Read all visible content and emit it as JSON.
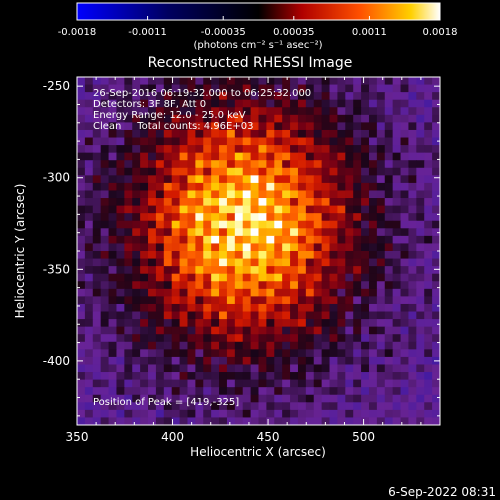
{
  "chart_data": {
    "type": "heatmap",
    "title": "Reconstructed RHESSI Image",
    "xlabel": "Heliocentric X (arcsec)",
    "ylabel": "Heliocentric Y (arcsec)",
    "xlim": [
      350,
      540
    ],
    "ylim": [
      -435,
      -245
    ],
    "x_ticks": [
      350,
      400,
      450,
      500
    ],
    "x_tick_labels": [
      "350",
      "400",
      "450",
      "500"
    ],
    "y_ticks": [
      -250,
      -300,
      -350,
      -400
    ],
    "y_tick_labels": [
      "-250",
      "-300",
      "-350",
      "-400"
    ],
    "colorbar": {
      "min": -0.0018,
      "max": 0.0018,
      "ticks": [
        -0.0018,
        -0.0011,
        -0.00035,
        0.00035,
        0.0011,
        0.0018
      ],
      "tick_labels": [
        "-0.0018",
        "-0.0011",
        "-0.00035",
        "0.00035",
        "0.0011",
        "0.0018"
      ],
      "unit_label": "(photons cm⁻² s⁻¹ asec⁻²)",
      "colors": [
        "#0000ff",
        "#000000",
        "#ff0000",
        "#ffff00",
        "#ffffff"
      ]
    },
    "annotations": [
      "26-Sep-2016 06:19:32.000 to 06:25:32.000",
      "Detectors: 3F 8F, Att 0",
      "Energy Range: 12.0 - 25.0 keV",
      "Clean     Total counts: 4.96E+03"
    ],
    "peak_label": "Position of Peak = [419,-325]",
    "peak": {
      "x": 419,
      "y": -325
    },
    "footer_date": "6-Sep-2022 08:31"
  }
}
